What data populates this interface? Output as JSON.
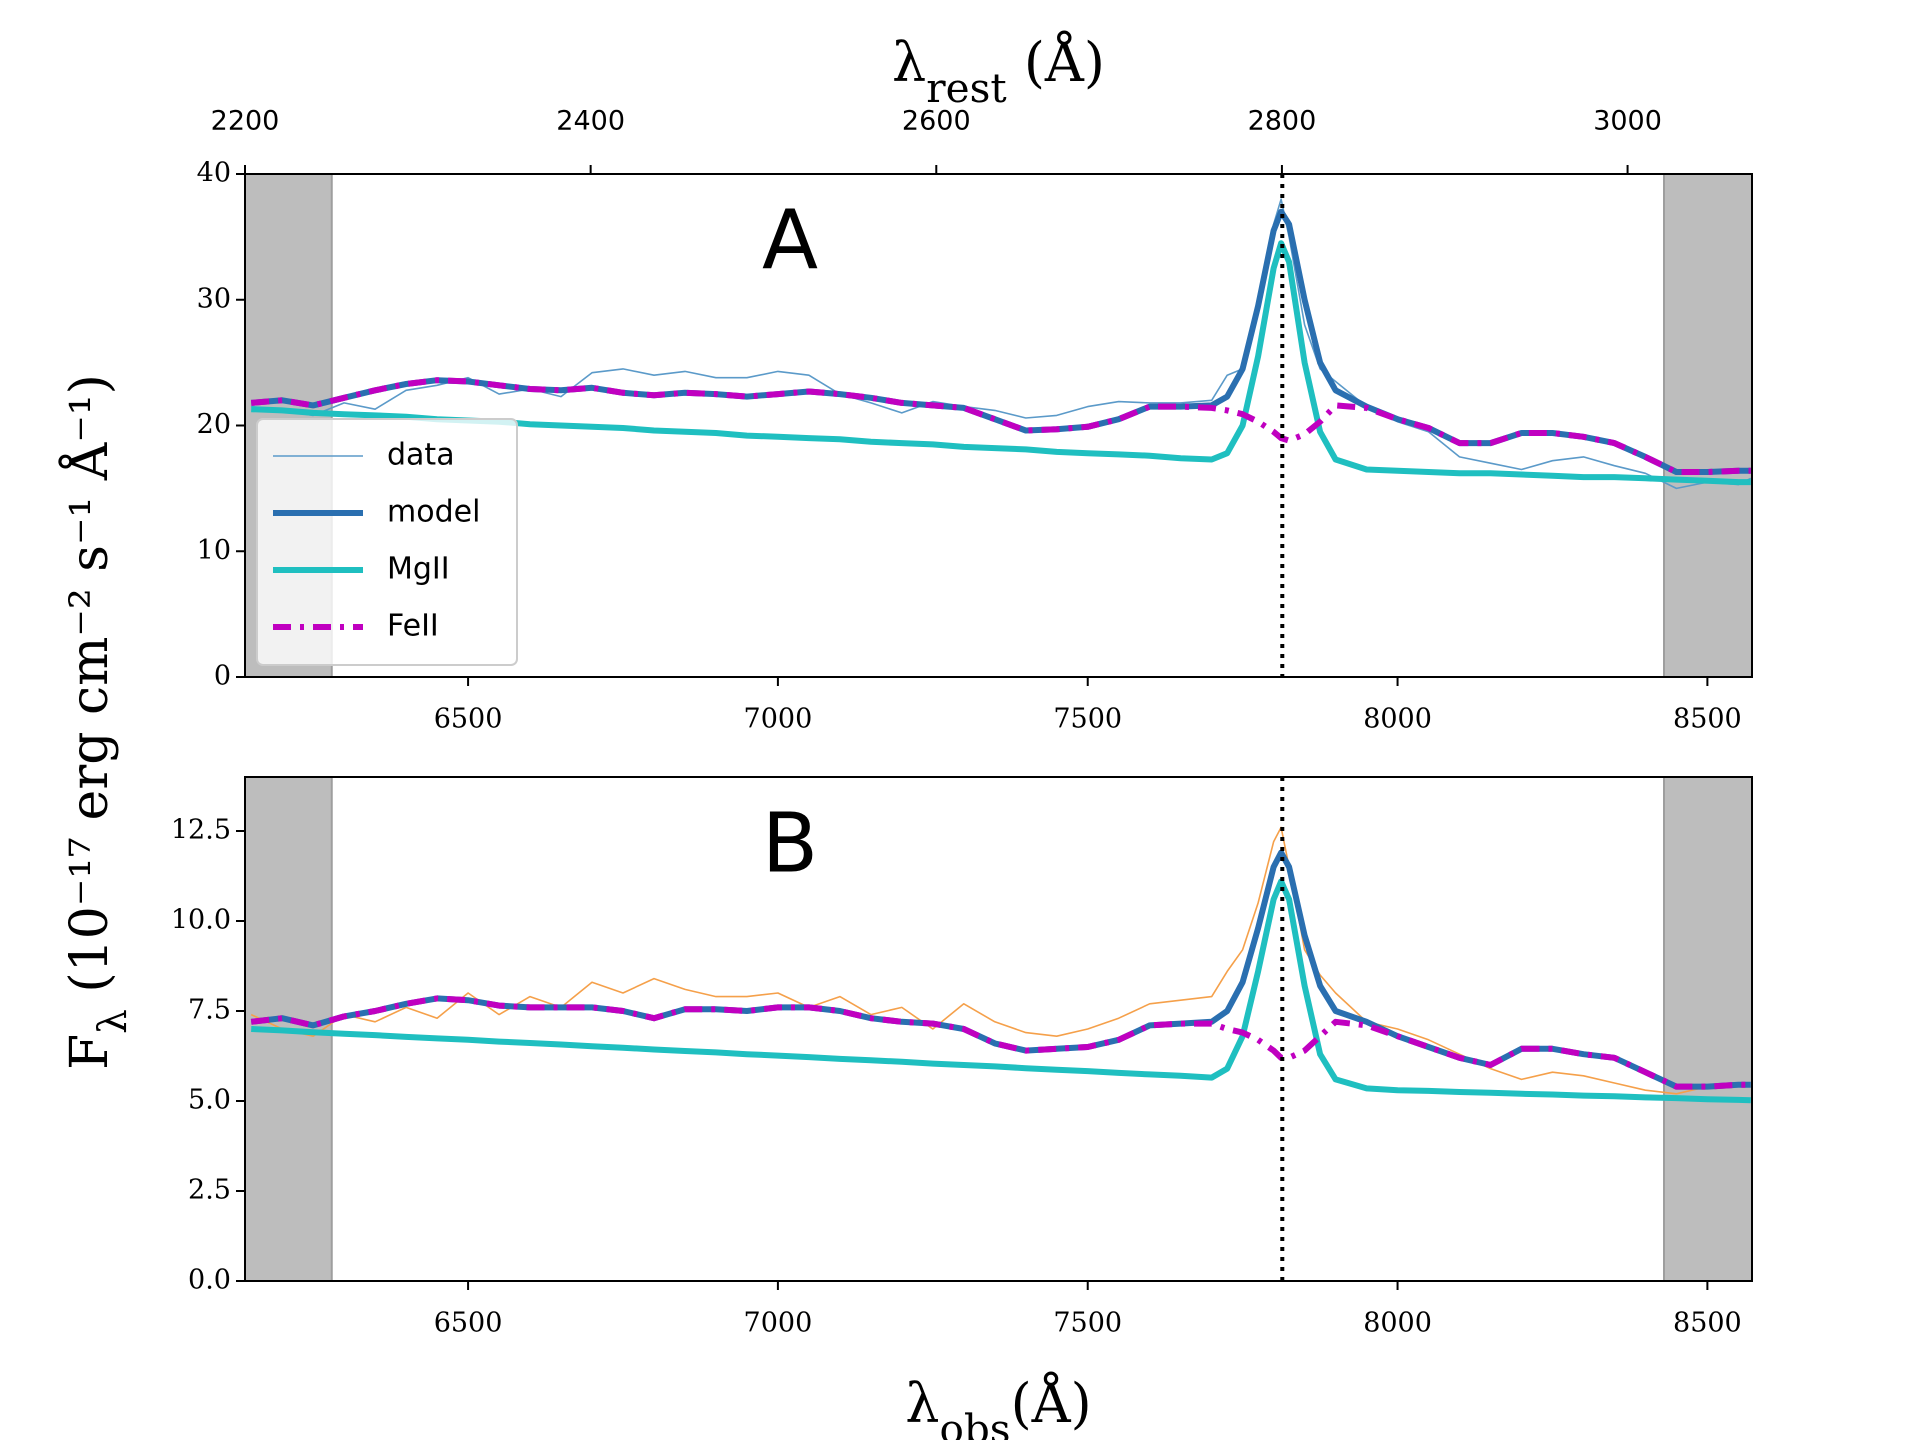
{
  "ylabel": {
    "symbol": "F",
    "sub": "λ",
    "unit": " (10⁻¹⁷ erg cm⁻² s⁻¹ Å⁻¹)"
  },
  "chart_data": [
    {
      "type": "line",
      "annotation": {
        "text": "A",
        "color": "#1f77b4"
      },
      "x2label": {
        "symbol": "λ",
        "sub": "rest",
        "unit": " (Å)"
      },
      "x2lim": [
        2200,
        3072
      ],
      "x2ticks": [
        2200,
        2400,
        2600,
        2800,
        3000
      ],
      "xlim": [
        6140,
        8572
      ],
      "xticks": [
        6500,
        7000,
        7500,
        8000,
        8500
      ],
      "ylim": [
        0,
        40
      ],
      "yticks": [
        0,
        10,
        20,
        30,
        40
      ],
      "shaded_regions": [
        [
          6140,
          6280
        ],
        [
          8430,
          8572
        ]
      ],
      "vline": 7814,
      "legend": "lower left",
      "x": [
        6150,
        6200,
        6250,
        6300,
        6350,
        6400,
        6450,
        6500,
        6550,
        6600,
        6650,
        6700,
        6750,
        6800,
        6850,
        6900,
        6950,
        7000,
        7050,
        7100,
        7150,
        7200,
        7250,
        7300,
        7350,
        7400,
        7450,
        7500,
        7550,
        7600,
        7650,
        7700,
        7725,
        7750,
        7775,
        7800,
        7812,
        7825,
        7850,
        7875,
        7900,
        7950,
        8000,
        8050,
        8100,
        8150,
        8200,
        8250,
        8300,
        8350,
        8400,
        8450,
        8500,
        8550,
        8570
      ],
      "series": [
        {
          "name": "data",
          "color": "#5b9ac9",
          "values": [
            21.5,
            21.2,
            20.8,
            21.8,
            21.3,
            22.8,
            23.2,
            23.8,
            22.5,
            22.9,
            22.3,
            24.2,
            24.5,
            24.0,
            24.3,
            23.8,
            23.8,
            24.3,
            24.0,
            22.5,
            21.8,
            21.0,
            21.9,
            21.5,
            21.2,
            20.6,
            20.8,
            21.5,
            21.9,
            21.8,
            21.8,
            22.0,
            24.0,
            24.5,
            29.0,
            36.0,
            38.0,
            35.0,
            28.0,
            24.5,
            23.5,
            21.5,
            20.3,
            19.5,
            17.5,
            17.0,
            16.5,
            17.2,
            17.5,
            16.8,
            16.2,
            15.0,
            15.5,
            15.3,
            15.8
          ]
        },
        {
          "name": "model",
          "color": "#2a6fb0",
          "values": [
            21.8,
            22.0,
            21.6,
            22.2,
            22.8,
            23.3,
            23.6,
            23.5,
            23.2,
            22.9,
            22.8,
            23.0,
            22.6,
            22.4,
            22.6,
            22.5,
            22.3,
            22.5,
            22.7,
            22.5,
            22.2,
            21.8,
            21.6,
            21.4,
            20.5,
            19.6,
            19.7,
            19.9,
            20.5,
            21.5,
            21.5,
            21.6,
            22.3,
            24.5,
            29.5,
            35.5,
            37.0,
            36.0,
            30.0,
            25.0,
            22.8,
            21.5,
            20.5,
            19.8,
            18.6,
            18.6,
            19.4,
            19.4,
            19.1,
            18.6,
            17.5,
            16.3,
            16.3,
            16.4,
            16.4
          ]
        },
        {
          "name": "MgII",
          "color": "#1fbfc0",
          "values": [
            21.3,
            21.2,
            21.0,
            20.9,
            20.8,
            20.7,
            20.5,
            20.4,
            20.3,
            20.1,
            20.0,
            19.9,
            19.8,
            19.6,
            19.5,
            19.4,
            19.2,
            19.1,
            19.0,
            18.9,
            18.7,
            18.6,
            18.5,
            18.3,
            18.2,
            18.1,
            17.9,
            17.8,
            17.7,
            17.6,
            17.4,
            17.3,
            17.8,
            20.0,
            25.5,
            32.5,
            34.5,
            33.0,
            25.0,
            19.5,
            17.3,
            16.5,
            16.4,
            16.3,
            16.2,
            16.2,
            16.1,
            16.0,
            15.9,
            15.9,
            15.8,
            15.7,
            15.6,
            15.5,
            15.5
          ]
        },
        {
          "name": "FeII",
          "color": "#c000c0",
          "dash": "18,9,4,9",
          "values": [
            21.8,
            22.0,
            21.6,
            22.2,
            22.8,
            23.3,
            23.6,
            23.5,
            23.2,
            22.9,
            22.8,
            23.0,
            22.6,
            22.4,
            22.6,
            22.5,
            22.3,
            22.5,
            22.7,
            22.5,
            22.2,
            21.8,
            21.6,
            21.4,
            20.5,
            19.6,
            19.7,
            19.9,
            20.5,
            21.5,
            21.5,
            21.4,
            21.2,
            20.9,
            20.3,
            19.5,
            19.0,
            18.8,
            19.3,
            20.3,
            21.6,
            21.4,
            20.5,
            19.8,
            18.6,
            18.6,
            19.4,
            19.4,
            19.1,
            18.6,
            17.5,
            16.3,
            16.3,
            16.4,
            16.4
          ]
        }
      ]
    },
    {
      "type": "line",
      "annotation": {
        "text": "B",
        "color": "#ff7f0e"
      },
      "xlabel": {
        "symbol": "λ",
        "sub": "obs",
        "unit": "(Å)"
      },
      "xlim": [
        6140,
        8572
      ],
      "xticks": [
        6500,
        7000,
        7500,
        8000,
        8500
      ],
      "ylim": [
        0,
        14
      ],
      "yticks": [
        {
          "value": 0,
          "label": "0.0"
        },
        2.5,
        {
          "value": 5,
          "label": "5.0"
        },
        7.5,
        {
          "value": 10,
          "label": "10.0"
        },
        12.5
      ],
      "shaded_regions": [
        [
          6140,
          6280
        ],
        [
          8430,
          8572
        ]
      ],
      "vline": 7814,
      "x": [
        6150,
        6200,
        6250,
        6300,
        6350,
        6400,
        6450,
        6500,
        6550,
        6600,
        6650,
        6700,
        6750,
        6800,
        6850,
        6900,
        6950,
        7000,
        7050,
        7100,
        7150,
        7200,
        7250,
        7300,
        7350,
        7400,
        7450,
        7500,
        7550,
        7600,
        7650,
        7700,
        7725,
        7750,
        7775,
        7800,
        7812,
        7825,
        7850,
        7875,
        7900,
        7950,
        8000,
        8050,
        8100,
        8150,
        8200,
        8250,
        8300,
        8350,
        8400,
        8450,
        8500,
        8550,
        8570
      ],
      "series": [
        {
          "name": "data",
          "color": "#f5a04a",
          "values": [
            7.4,
            7.0,
            6.8,
            7.4,
            7.2,
            7.6,
            7.3,
            8.0,
            7.4,
            7.9,
            7.6,
            8.3,
            8.0,
            8.4,
            8.1,
            7.9,
            7.9,
            8.0,
            7.6,
            7.9,
            7.4,
            7.6,
            7.0,
            7.7,
            7.2,
            6.9,
            6.8,
            7.0,
            7.3,
            7.7,
            7.8,
            7.9,
            8.6,
            9.2,
            10.5,
            12.2,
            12.6,
            11.5,
            9.2,
            8.5,
            8.0,
            7.2,
            7.0,
            6.7,
            6.3,
            5.9,
            5.6,
            5.8,
            5.7,
            5.5,
            5.3,
            5.2,
            5.4,
            5.5,
            5.4
          ]
        },
        {
          "name": "model",
          "color": "#2a6fb0",
          "values": [
            7.2,
            7.3,
            7.1,
            7.35,
            7.5,
            7.7,
            7.85,
            7.8,
            7.65,
            7.6,
            7.6,
            7.6,
            7.5,
            7.3,
            7.55,
            7.55,
            7.5,
            7.6,
            7.6,
            7.5,
            7.3,
            7.2,
            7.15,
            7.0,
            6.6,
            6.4,
            6.45,
            6.5,
            6.7,
            7.1,
            7.15,
            7.2,
            7.5,
            8.3,
            9.8,
            11.5,
            11.9,
            11.5,
            9.6,
            8.2,
            7.5,
            7.2,
            6.8,
            6.5,
            6.2,
            6.0,
            6.45,
            6.45,
            6.3,
            6.2,
            5.8,
            5.4,
            5.4,
            5.45,
            5.45
          ]
        },
        {
          "name": "MgII",
          "color": "#1fbfc0",
          "values": [
            7.0,
            6.96,
            6.91,
            6.87,
            6.83,
            6.78,
            6.74,
            6.7,
            6.65,
            6.61,
            6.57,
            6.52,
            6.48,
            6.43,
            6.39,
            6.35,
            6.3,
            6.26,
            6.22,
            6.17,
            6.13,
            6.09,
            6.04,
            6.0,
            5.96,
            5.91,
            5.87,
            5.83,
            5.78,
            5.74,
            5.7,
            5.65,
            5.9,
            6.8,
            8.6,
            10.6,
            11.1,
            10.6,
            8.2,
            6.3,
            5.6,
            5.35,
            5.3,
            5.28,
            5.25,
            5.23,
            5.2,
            5.18,
            5.15,
            5.13,
            5.1,
            5.08,
            5.05,
            5.03,
            5.02
          ]
        },
        {
          "name": "FeII",
          "color": "#c000c0",
          "dash": "18,9,4,9",
          "values": [
            7.2,
            7.3,
            7.1,
            7.35,
            7.5,
            7.7,
            7.85,
            7.8,
            7.65,
            7.6,
            7.6,
            7.6,
            7.5,
            7.3,
            7.55,
            7.55,
            7.5,
            7.6,
            7.6,
            7.5,
            7.3,
            7.2,
            7.15,
            7.0,
            6.6,
            6.4,
            6.45,
            6.5,
            6.7,
            7.1,
            7.15,
            7.15,
            7.0,
            6.9,
            6.7,
            6.4,
            6.2,
            6.2,
            6.4,
            6.8,
            7.2,
            7.1,
            6.8,
            6.5,
            6.2,
            6.0,
            6.45,
            6.45,
            6.3,
            6.2,
            5.8,
            5.4,
            5.4,
            5.45,
            5.45
          ]
        }
      ]
    }
  ]
}
